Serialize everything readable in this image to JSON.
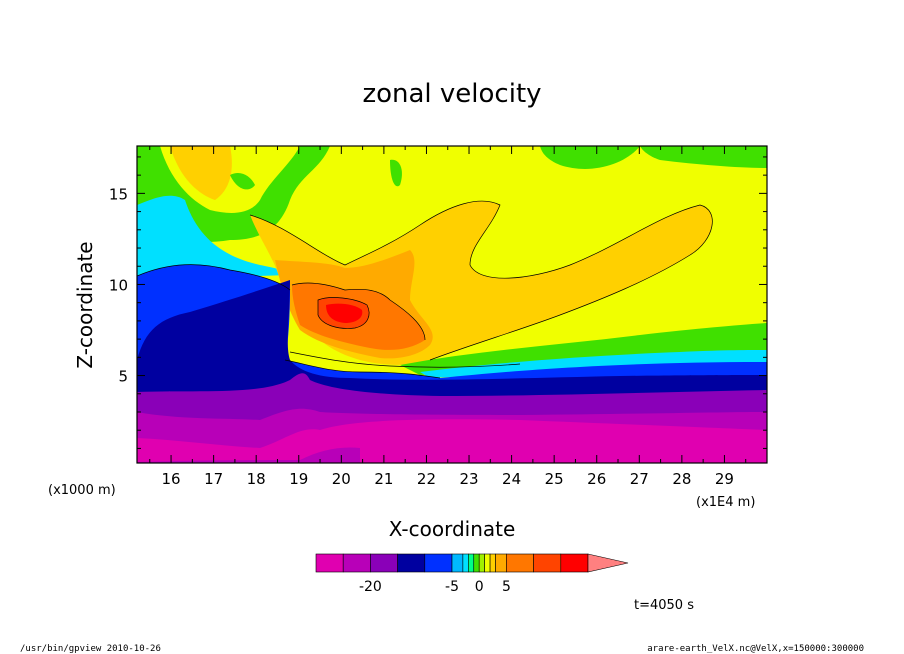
{
  "chart_data": {
    "type": "heatmap",
    "title": "zonal velocity",
    "xlabel": "X-coordinate",
    "ylabel": "Z-coordinate",
    "x_unit": "(x1E4 m)",
    "y_unit": "(x1000 m)",
    "xlim": [
      15.2,
      30.0
    ],
    "ylim": [
      0.2,
      17.6
    ],
    "x_ticks": [
      "16",
      "17",
      "18",
      "19",
      "20",
      "21",
      "22",
      "23",
      "24",
      "25",
      "26",
      "27",
      "28",
      "29"
    ],
    "y_ticks": [
      "5",
      "10",
      "15"
    ],
    "colorbar": {
      "labels": [
        "-20",
        "-5",
        "0",
        "5"
      ],
      "levels": [
        -30,
        -25,
        -20,
        -15,
        -10,
        -5,
        -3,
        -2,
        -1,
        0,
        1,
        2,
        3,
        5,
        10,
        15,
        20
      ],
      "colors": [
        "#e000b0",
        "#b800b8",
        "#8a00b8",
        "#0000a0",
        "#0030ff",
        "#00b8ff",
        "#00e0ff",
        "#00ff88",
        "#40e000",
        "#a0f000",
        "#f0ff00",
        "#ffd000",
        "#ffaa00",
        "#ff7700",
        "#ff4400",
        "#ff0000"
      ],
      "overflow_color": "#ff8080"
    },
    "time_label": "t=4050 s",
    "footer_left": "/usr/bin/gpview  2010-10-26",
    "footer_right": "arare-earth_VelX.nc@VelX,x=150000:300000"
  }
}
